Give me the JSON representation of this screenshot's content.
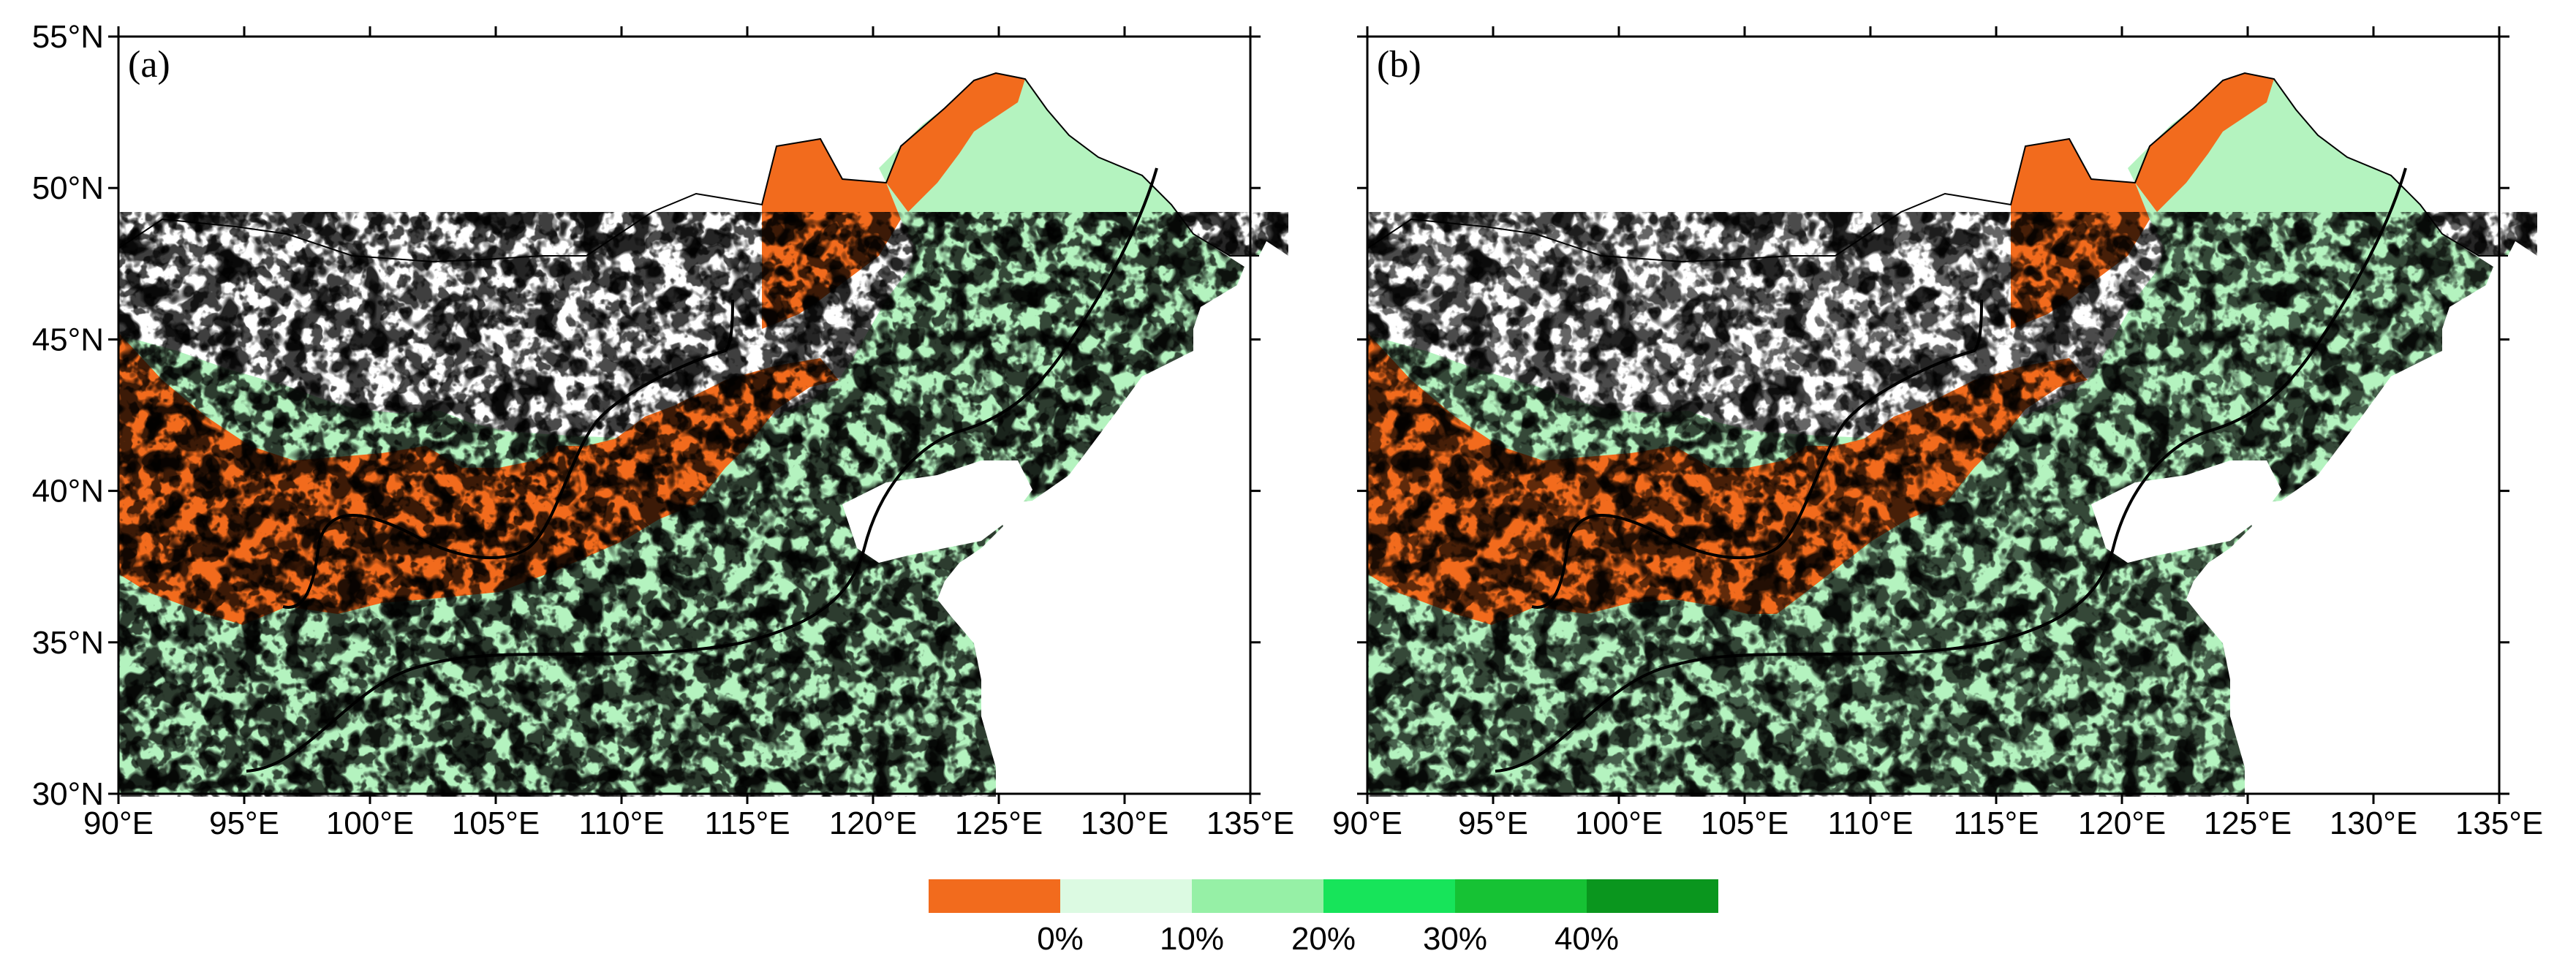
{
  "figure": {
    "panels": [
      {
        "label": "(a)"
      },
      {
        "label": "(b)"
      }
    ],
    "lat_ticks": [
      "55°N",
      "50°N",
      "45°N",
      "40°N",
      "35°N",
      "30°N"
    ],
    "lon_ticks": [
      "90°E",
      "95°E",
      "100°E",
      "105°E",
      "110°E",
      "115°E",
      "120°E",
      "125°E",
      "130°E",
      "135°E"
    ],
    "lon_range": [
      90,
      135
    ],
    "lat_range": [
      30,
      55
    ],
    "colorbar": {
      "labels": [
        "0%",
        "10%",
        "20%",
        "30%",
        "40%"
      ],
      "colors": [
        "#f26b1d",
        "#dcfae2",
        "#96f0a6",
        "#17e45a",
        "#16c234",
        "#0a961e"
      ]
    }
  }
}
